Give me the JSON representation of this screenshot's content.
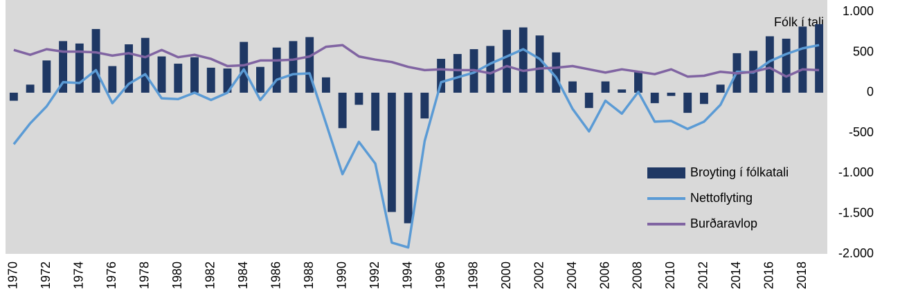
{
  "chart_data": {
    "type": "bar_line",
    "annotation": "Fólk í tali",
    "categories": [
      "1970",
      null,
      "1972",
      null,
      "1974",
      null,
      "1976",
      null,
      "1978",
      null,
      "1980",
      null,
      "1982",
      null,
      "1984",
      null,
      "1986",
      null,
      "1988",
      null,
      "1990",
      null,
      "1992",
      null,
      "1994",
      null,
      "1996",
      null,
      "1998",
      null,
      "2000",
      null,
      "2002",
      null,
      "2004",
      null,
      "2006",
      null,
      "2008",
      null,
      "2010",
      null,
      "2012",
      null,
      "2014",
      null,
      "2016",
      null,
      "2018",
      null
    ],
    "series": [
      {
        "name": "Broyting í fólkatali",
        "type": "bar",
        "color": "#1f3864",
        "values": [
          -100,
          100,
          400,
          640,
          610,
          790,
          330,
          600,
          680,
          450,
          360,
          440,
          310,
          300,
          630,
          320,
          560,
          640,
          690,
          190,
          -440,
          -150,
          -470,
          -1480,
          -1620,
          -320,
          420,
          480,
          540,
          580,
          780,
          810,
          710,
          500,
          140,
          -190,
          140,
          40,
          270,
          -130,
          -40,
          -250,
          -140,
          100,
          490,
          520,
          700,
          670,
          820,
          850
        ]
      },
      {
        "name": "Nettoflyting",
        "type": "line",
        "color": "#5b9bd5",
        "values": [
          -640,
          -380,
          -170,
          130,
          120,
          280,
          -130,
          110,
          230,
          -70,
          -80,
          0,
          -90,
          0,
          290,
          -90,
          160,
          230,
          240,
          -380,
          -1010,
          -610,
          -880,
          -1860,
          -1920,
          -600,
          130,
          190,
          250,
          360,
          450,
          540,
          420,
          190,
          -200,
          -480,
          -100,
          -260,
          10,
          -360,
          -350,
          -450,
          -360,
          -150,
          260,
          250,
          390,
          480,
          550,
          590
        ]
      },
      {
        "name": "Burðaravlop",
        "type": "line",
        "color": "#8064a2",
        "values": [
          530,
          470,
          540,
          510,
          510,
          500,
          460,
          490,
          440,
          530,
          440,
          470,
          420,
          330,
          340,
          400,
          400,
          410,
          450,
          570,
          590,
          450,
          410,
          380,
          320,
          280,
          290,
          280,
          280,
          240,
          330,
          270,
          300,
          310,
          330,
          290,
          250,
          290,
          260,
          230,
          290,
          200,
          210,
          260,
          240,
          260,
          310,
          200,
          290,
          280
        ]
      }
    ],
    "ylim": [
      -2000,
      1150
    ],
    "yticks": [
      {
        "value": 1000,
        "label": "1.000"
      },
      500,
      0,
      -500,
      {
        "value": -1000,
        "label": "-1.000"
      },
      {
        "value": -1500,
        "label": "-1.500"
      },
      {
        "value": -2000,
        "label": "-2.000"
      }
    ],
    "grid": false,
    "legend": "lower right",
    "background": "#d9d9d9"
  }
}
